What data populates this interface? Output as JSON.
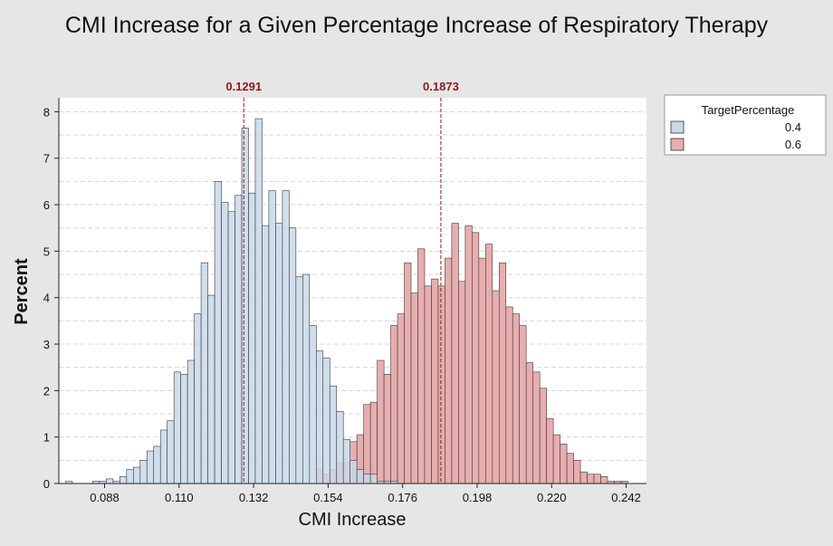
{
  "chart_data": {
    "type": "histogram",
    "title": "CMI Increase for a Given Percentage Increase of Respiratory Therapy",
    "xlabel": "CMI Increase",
    "ylabel": "Percent",
    "xlim": [
      0.0745,
      0.248
    ],
    "ylim": [
      0,
      8.3
    ],
    "xticks": [
      {
        "value": 0.088,
        "label": "0.088"
      },
      {
        "value": 0.11,
        "label": "0.110"
      },
      {
        "value": 0.132,
        "label": "0.132"
      },
      {
        "value": 0.154,
        "label": "0.154"
      },
      {
        "value": 0.176,
        "label": "0.176"
      },
      {
        "value": 0.198,
        "label": "0.198"
      },
      {
        "value": 0.22,
        "label": "0.220"
      },
      {
        "value": 0.242,
        "label": "0.242"
      }
    ],
    "yticks": [
      {
        "value": 0,
        "label": "0"
      },
      {
        "value": 1,
        "label": "1"
      },
      {
        "value": 2,
        "label": "2"
      },
      {
        "value": 3,
        "label": "3"
      },
      {
        "value": 4,
        "label": "4"
      },
      {
        "value": 5,
        "label": "5"
      },
      {
        "value": 6,
        "label": "6"
      },
      {
        "value": 7,
        "label": "7"
      },
      {
        "value": 8,
        "label": "8"
      }
    ],
    "grid": true,
    "legend_position": "top-right",
    "legend_title": "TargetPercentage",
    "series": [
      {
        "name": "0.4",
        "color": "#c9d8e9",
        "bin_start": 0.0765,
        "bin_width": 0.002,
        "values": [
          0.05,
          0,
          0,
          0,
          0.05,
          0.05,
          0.1,
          0.05,
          0.15,
          0.3,
          0.35,
          0.5,
          0.7,
          0.8,
          1.15,
          1.35,
          2.4,
          2.35,
          2.65,
          3.65,
          4.75,
          4.05,
          6.5,
          6.05,
          5.85,
          6.2,
          7.65,
          6.25,
          7.85,
          5.55,
          6.3,
          5.6,
          6.3,
          5.5,
          4.45,
          4.5,
          3.4,
          2.85,
          2.7,
          2.1,
          1.55,
          0.95,
          0.5,
          0.3,
          0.2,
          0.2,
          0.05,
          0.05,
          0.05
        ]
      },
      {
        "name": "0.6",
        "color": "#e8aeaf",
        "bin_start": 0.1505,
        "bin_width": 0.002,
        "values": [
          0.3,
          0.2,
          0.3,
          0.45,
          0.45,
          0.9,
          1.05,
          1.7,
          1.75,
          2.65,
          2.35,
          3.4,
          3.65,
          4.75,
          4.1,
          5.05,
          4.25,
          4.4,
          4.25,
          4.85,
          5.6,
          4.35,
          5.55,
          5.4,
          4.85,
          5.15,
          4.15,
          4.75,
          3.8,
          3.65,
          3.4,
          2.6,
          2.4,
          2.05,
          1.4,
          1.05,
          0.85,
          0.65,
          0.5,
          0.25,
          0.2,
          0.2,
          0.15,
          0.05,
          0.05,
          0.05
        ]
      }
    ],
    "reference_lines": [
      {
        "value": 0.1291,
        "label": "0.1291"
      },
      {
        "value": 0.1873,
        "label": "0.1873"
      }
    ]
  }
}
